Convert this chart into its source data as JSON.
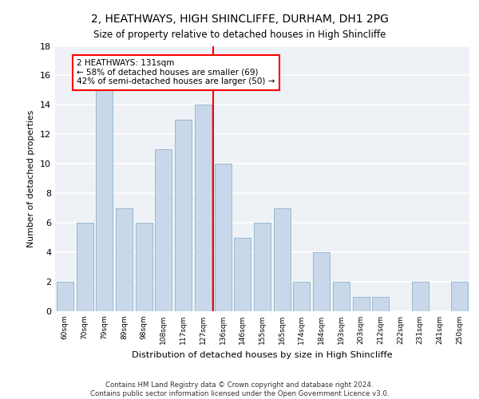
{
  "title1": "2, HEATHWAYS, HIGH SHINCLIFFE, DURHAM, DH1 2PG",
  "title2": "Size of property relative to detached houses in High Shincliffe",
  "xlabel": "Distribution of detached houses by size in High Shincliffe",
  "ylabel": "Number of detached properties",
  "categories": [
    "60sqm",
    "70sqm",
    "79sqm",
    "89sqm",
    "98sqm",
    "108sqm",
    "117sqm",
    "127sqm",
    "136sqm",
    "146sqm",
    "155sqm",
    "165sqm",
    "174sqm",
    "184sqm",
    "193sqm",
    "203sqm",
    "212sqm",
    "222sqm",
    "231sqm",
    "241sqm",
    "250sqm"
  ],
  "values": [
    2,
    6,
    15,
    7,
    6,
    11,
    13,
    14,
    10,
    5,
    6,
    7,
    2,
    4,
    2,
    1,
    1,
    0,
    2,
    0,
    2
  ],
  "bar_color": "#c8d8ea",
  "bar_edgecolor": "#9ab8cc",
  "vline_x": 7.5,
  "vline_color": "red",
  "annotation_text": "2 HEATHWAYS: 131sqm\n← 58% of detached houses are smaller (69)\n42% of semi-detached houses are larger (50) →",
  "annotation_box_color": "white",
  "annotation_box_edgecolor": "red",
  "ylim": [
    0,
    18
  ],
  "yticks": [
    0,
    2,
    4,
    6,
    8,
    10,
    12,
    14,
    16,
    18
  ],
  "footer": "Contains HM Land Registry data © Crown copyright and database right 2024.\nContains public sector information licensed under the Open Government Licence v3.0.",
  "bg_color": "#eef2f7",
  "grid_color": "white"
}
